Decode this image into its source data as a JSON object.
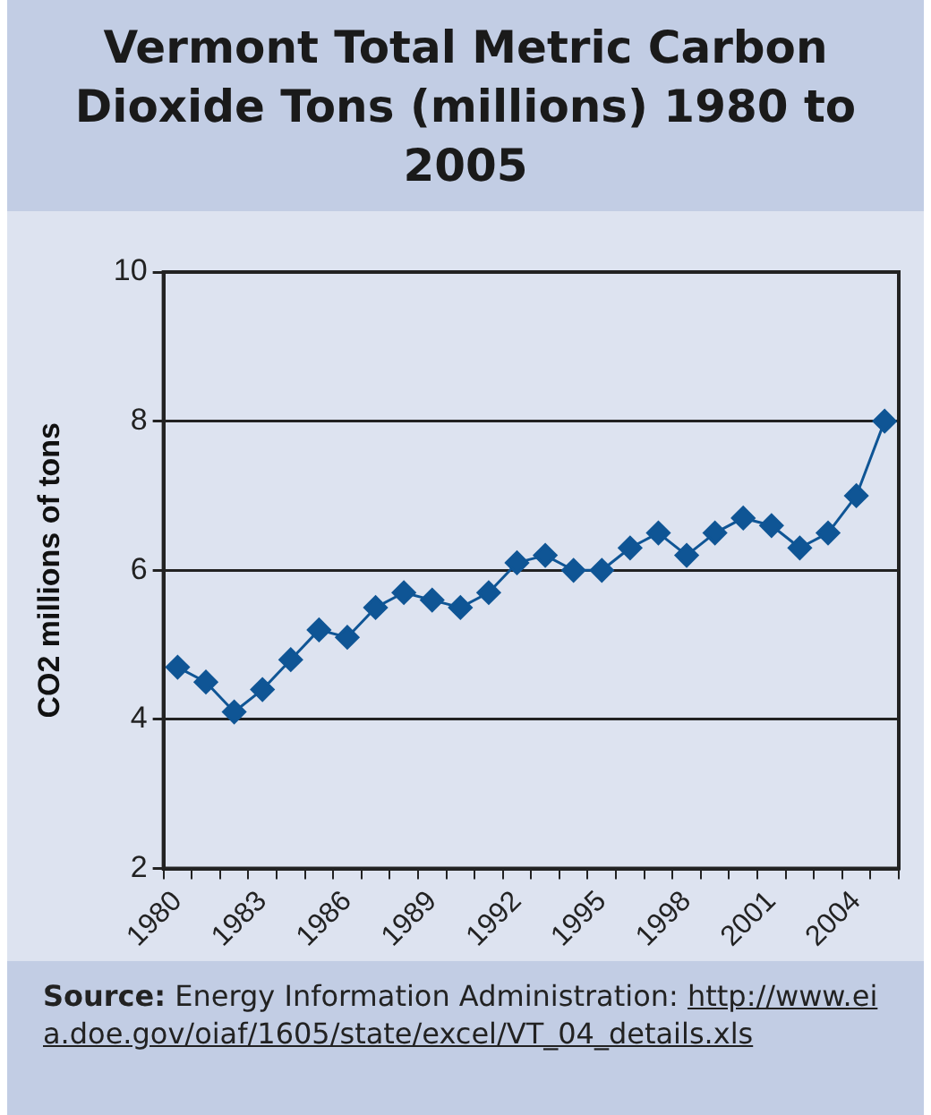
{
  "chart_data": {
    "type": "line",
    "title": "Vermont Total Metric Carbon Dioxide Tons (millions) 1980 to 2005",
    "ylabel": "CO2 millions of tons",
    "categories": [
      "1980",
      null,
      null,
      "1983",
      null,
      null,
      "1986",
      null,
      null,
      "1989",
      null,
      null,
      "1992",
      null,
      null,
      "1995",
      null,
      null,
      "1998",
      null,
      null,
      "2001",
      null,
      null,
      "2004",
      null
    ],
    "series": [
      {
        "color": "#0f5595",
        "values": [
          4.7,
          4.5,
          4.1,
          4.4,
          4.8,
          5.2,
          5.1,
          5.5,
          5.7,
          5.6,
          5.5,
          5.7,
          6.1,
          6.2,
          6.0,
          6.0,
          6.3,
          6.5,
          6.2,
          6.5,
          6.7,
          6.6,
          6.3,
          6.5,
          7.0,
          8.0
        ]
      }
    ],
    "ylim": [
      2,
      10
    ],
    "yticks": [
      2,
      4,
      6,
      8,
      10
    ],
    "grid": "y",
    "legend": false,
    "marker": "diamond",
    "line_style": "solid",
    "annotations": [
      "Source: Energy Information Administration: http://www.eia.doe.gov/oiaf/1605/state/excel/VT_04_details.xls"
    ]
  }
}
